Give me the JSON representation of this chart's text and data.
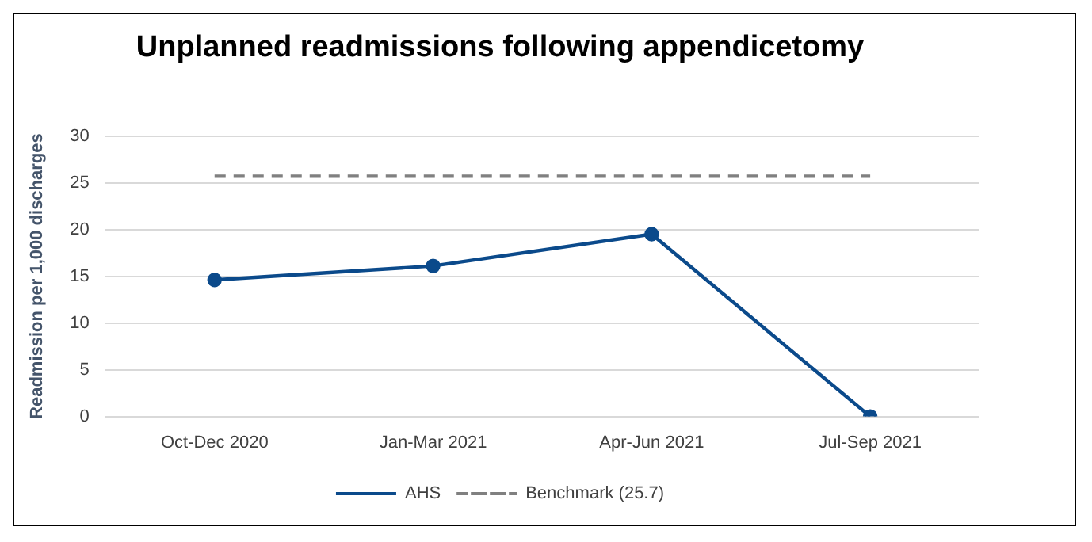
{
  "chart_data": {
    "type": "line",
    "title": "Unplanned readmissions following appendicetomy",
    "ylabel": "Readmission per 1,000 discharges",
    "categories": [
      "Oct-Dec 2020",
      "Jan-Mar 2021",
      "Apr-Jun 2021",
      "Jul-Sep 2021"
    ],
    "series": [
      {
        "name": "AHS",
        "color": "#0b4a8b",
        "values": [
          14.6,
          16.1,
          19.5,
          0
        ],
        "marker": "circle",
        "line_style": "solid"
      },
      {
        "name": "Benchmark (25.7)",
        "color": "#808080",
        "values": [
          25.7,
          25.7,
          25.7,
          25.7
        ],
        "marker": "none",
        "line_style": "dashed"
      }
    ],
    "ylim": [
      0,
      30
    ],
    "yticks": [
      0,
      5,
      10,
      15,
      20,
      25,
      30
    ],
    "grid": "y",
    "legend": "bottom"
  }
}
